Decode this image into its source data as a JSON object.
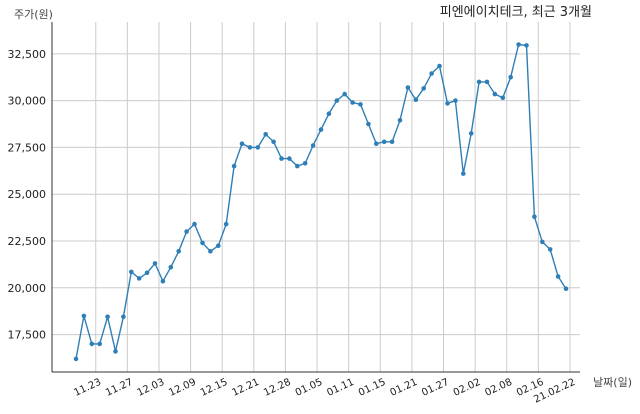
{
  "chart_data": {
    "type": "line",
    "title": "피엔에이치테크, 최근 3개월",
    "ylabel": "주가(원)",
    "xlabel": "날짜(일)",
    "ylim": [
      15500,
      34200
    ],
    "yticks": [
      17500,
      20000,
      22500,
      25000,
      27500,
      30000,
      32500
    ],
    "ytick_labels": [
      "17,500",
      "20,000",
      "22,500",
      "25,000",
      "27,500",
      "30,000",
      "32,500"
    ],
    "xtick_labels": [
      "11.23",
      "11.27",
      "12.03",
      "12.09",
      "12.15",
      "12.21",
      "12.28",
      "01.05",
      "01.11",
      "01.15",
      "01.21",
      "01.27",
      "02.02",
      "02.08",
      "02.16",
      "21.02.22"
    ],
    "xtick_index": [
      2.5,
      6.5,
      10.5,
      14.5,
      18.5,
      22.5,
      26.5,
      30.5,
      34.5,
      38.5,
      42.5,
      46.5,
      50.5,
      54.5,
      58.5,
      62.5
    ],
    "grid": true,
    "color": "#2e7fb8",
    "series": [
      {
        "values": [
          16200,
          18500,
          17000,
          17000,
          18450,
          16600,
          18450,
          20850,
          20500,
          20800,
          21300,
          20350,
          21100,
          21950,
          23000,
          23400,
          22400,
          21950,
          22250,
          23400,
          26500,
          27700,
          27500,
          27500,
          28200,
          27800,
          26900,
          26900,
          26500,
          26650,
          27600,
          28450,
          29300,
          30000,
          30350,
          29900,
          29800,
          28750,
          27700,
          27800,
          27800,
          28950,
          30700,
          30050,
          30650,
          31450,
          31850,
          29850,
          30000,
          26100,
          28250,
          31000,
          31000,
          30350,
          30150,
          31250,
          33000,
          32950,
          23800,
          22450,
          22050,
          20600,
          19950
        ]
      }
    ]
  }
}
